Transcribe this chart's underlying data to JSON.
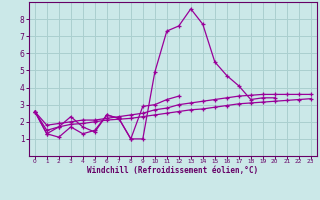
{
  "background_color": "#cbe8e8",
  "grid_color": "#aacfcf",
  "line_color": "#990099",
  "xlabel": "Windchill (Refroidissement éolien,°C)",
  "xlabel_color": "#660066",
  "tick_color": "#660066",
  "spine_color": "#660066",
  "xlim": [
    -0.5,
    23.5
  ],
  "ylim": [
    0,
    9
  ],
  "xticks": [
    0,
    1,
    2,
    3,
    4,
    5,
    6,
    7,
    8,
    9,
    10,
    11,
    12,
    13,
    14,
    15,
    16,
    17,
    18,
    19,
    20,
    21,
    22,
    23
  ],
  "yticks": [
    1,
    2,
    3,
    4,
    5,
    6,
    7,
    8
  ],
  "series_x": [
    [
      0,
      1,
      2,
      3,
      4,
      5,
      6,
      7,
      8,
      9,
      10,
      11,
      12,
      13,
      14,
      15,
      16,
      17,
      18,
      19,
      20
    ],
    [
      0,
      1,
      2,
      3,
      4,
      5,
      6,
      7,
      8,
      9,
      10,
      11,
      12
    ],
    [
      0,
      1,
      2,
      3,
      4,
      5,
      6,
      7,
      8,
      9,
      10,
      11,
      12,
      13,
      14,
      15,
      16,
      17,
      18,
      19,
      20,
      21,
      22,
      23
    ],
    [
      0,
      1,
      2,
      3,
      4,
      5,
      6,
      7,
      8,
      9,
      10,
      11,
      12,
      13,
      14,
      15,
      16,
      17,
      18,
      19,
      20,
      21,
      22,
      23
    ]
  ],
  "series_y": [
    [
      2.6,
      1.3,
      1.1,
      1.7,
      1.3,
      1.5,
      2.4,
      2.2,
      1.0,
      1.0,
      4.9,
      7.3,
      7.6,
      8.6,
      7.7,
      5.5,
      4.7,
      4.1,
      3.3,
      3.4,
      3.4
    ],
    [
      2.6,
      1.3,
      1.7,
      2.3,
      1.7,
      1.4,
      2.4,
      2.2,
      1.0,
      2.9,
      3.0,
      3.3,
      3.5
    ],
    [
      2.6,
      1.8,
      1.9,
      2.0,
      2.1,
      2.1,
      2.2,
      2.3,
      2.4,
      2.5,
      2.7,
      2.8,
      3.0,
      3.1,
      3.2,
      3.3,
      3.4,
      3.5,
      3.55,
      3.6,
      3.6,
      3.6,
      3.6,
      3.6
    ],
    [
      2.6,
      1.5,
      1.7,
      1.85,
      1.9,
      2.0,
      2.1,
      2.15,
      2.2,
      2.3,
      2.4,
      2.5,
      2.6,
      2.7,
      2.75,
      2.85,
      2.95,
      3.05,
      3.1,
      3.15,
      3.2,
      3.25,
      3.3,
      3.35
    ]
  ]
}
